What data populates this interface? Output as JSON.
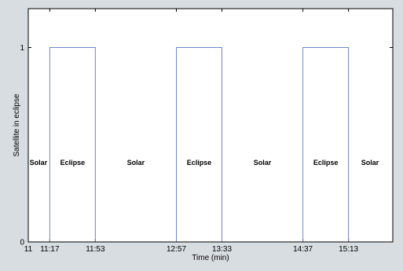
{
  "chart_data": {
    "type": "line",
    "title": "",
    "xlabel": "Time (min)",
    "ylabel": "Satellite in eclipse",
    "x_tick_labels": [
      "11",
      "11:17",
      "11:53",
      "12:57",
      "13:33",
      "14:37",
      "15:13"
    ],
    "y_tick_labels": [
      "0",
      "1"
    ],
    "xlim": [
      "11:00",
      "15:48"
    ],
    "ylim": [
      0,
      1.2
    ],
    "grid": false,
    "legend": null,
    "line_color": "#6f86c8",
    "series": [
      {
        "points": [
          {
            "x": "11:00",
            "y": 0
          },
          {
            "x": "11:17",
            "y": 0
          },
          {
            "x": "11:17",
            "y": 1
          },
          {
            "x": "11:53",
            "y": 1
          },
          {
            "x": "11:53",
            "y": 0
          },
          {
            "x": "12:57",
            "y": 0
          },
          {
            "x": "12:57",
            "y": 1
          },
          {
            "x": "13:33",
            "y": 1
          },
          {
            "x": "13:33",
            "y": 0
          },
          {
            "x": "14:37",
            "y": 0
          },
          {
            "x": "14:37",
            "y": 1
          },
          {
            "x": "15:13",
            "y": 1
          },
          {
            "x": "15:13",
            "y": 0
          },
          {
            "x": "15:48",
            "y": 0
          }
        ]
      }
    ],
    "annotations": [
      {
        "text": "Solar",
        "x": "11:08"
      },
      {
        "text": "Eclipse",
        "x": "11:35"
      },
      {
        "text": "Solar",
        "x": "12:25"
      },
      {
        "text": "Eclipse",
        "x": "13:15"
      },
      {
        "text": "Solar",
        "x": "14:05"
      },
      {
        "text": "Eclipse",
        "x": "14:55"
      },
      {
        "text": "Solar",
        "x": "15:30"
      }
    ]
  }
}
